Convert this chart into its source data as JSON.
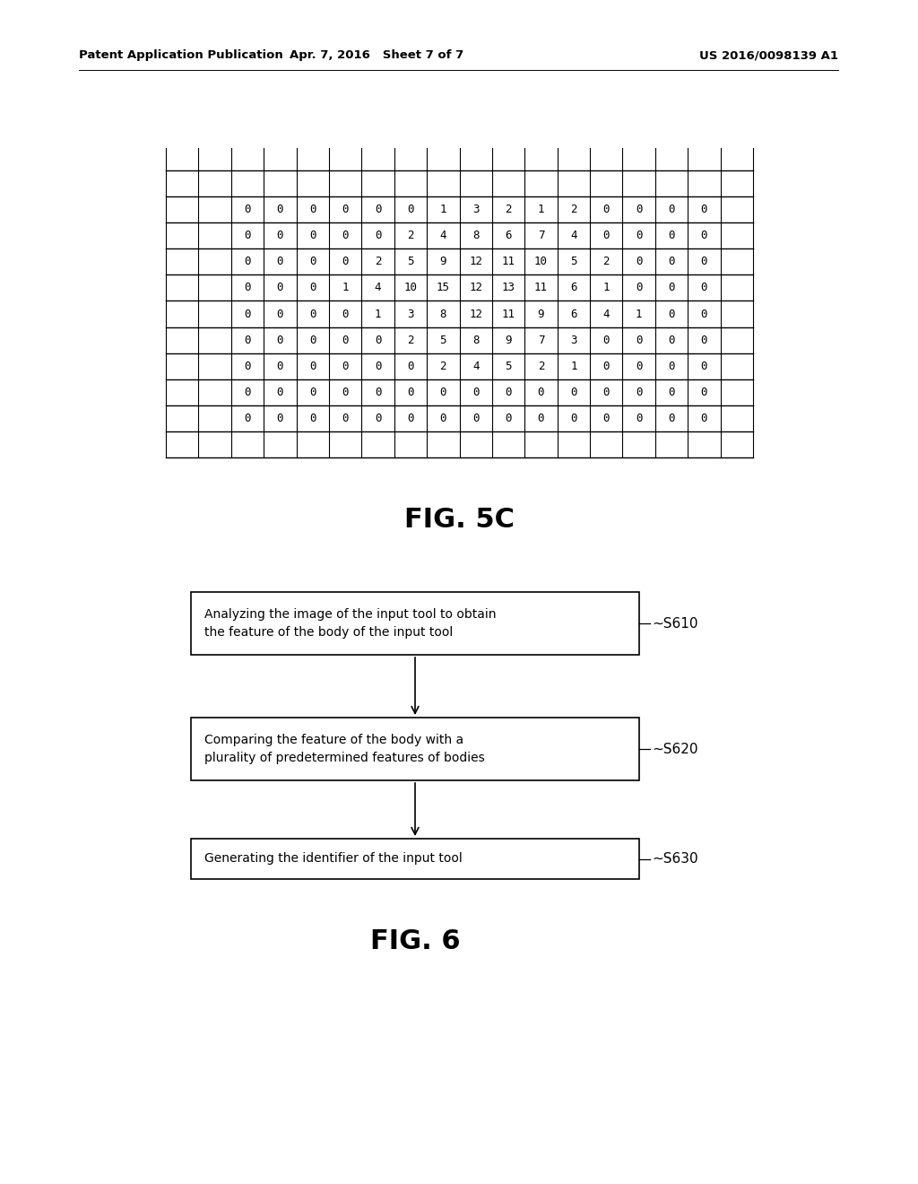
{
  "header_left": "Patent Application Publication",
  "header_mid": "Apr. 7, 2016   Sheet 7 of 7",
  "header_right": "US 2016/0098139 A1",
  "fig5c_label": "FIG. 5C",
  "fig6_label": "FIG. 6",
  "grid_data": [
    [
      0,
      0,
      0,
      0,
      0,
      0,
      1,
      3,
      2,
      1,
      2,
      0,
      0,
      0,
      0
    ],
    [
      0,
      0,
      0,
      0,
      0,
      2,
      4,
      8,
      6,
      7,
      4,
      0,
      0,
      0,
      0
    ],
    [
      0,
      0,
      0,
      0,
      2,
      5,
      9,
      12,
      11,
      10,
      5,
      2,
      0,
      0,
      0
    ],
    [
      0,
      0,
      0,
      1,
      4,
      10,
      15,
      12,
      13,
      11,
      6,
      1,
      0,
      0,
      0
    ],
    [
      0,
      0,
      0,
      0,
      1,
      3,
      8,
      12,
      11,
      9,
      6,
      4,
      1,
      0,
      0
    ],
    [
      0,
      0,
      0,
      0,
      0,
      2,
      5,
      8,
      9,
      7,
      3,
      0,
      0,
      0,
      0
    ],
    [
      0,
      0,
      0,
      0,
      0,
      0,
      2,
      4,
      5,
      2,
      1,
      0,
      0,
      0,
      0
    ],
    [
      0,
      0,
      0,
      0,
      0,
      0,
      0,
      0,
      0,
      0,
      0,
      0,
      0,
      0,
      0
    ],
    [
      0,
      0,
      0,
      0,
      0,
      0,
      0,
      0,
      0,
      0,
      0,
      0,
      0,
      0,
      0
    ]
  ],
  "num_data_cols": 15,
  "num_data_rows": 9,
  "flowchart_boxes": [
    {
      "text": "Analyzing the image of the input tool to obtain\nthe feature of the body of the input tool",
      "label": "~S610"
    },
    {
      "text": "Comparing the feature of the body with a\nplurality of predetermined features of bodies",
      "label": "~S620"
    },
    {
      "text": "Generating the identifier of the input tool",
      "label": "~S630"
    }
  ],
  "bg_color": "#ffffff",
  "text_color": "#000000",
  "line_color": "#000000"
}
